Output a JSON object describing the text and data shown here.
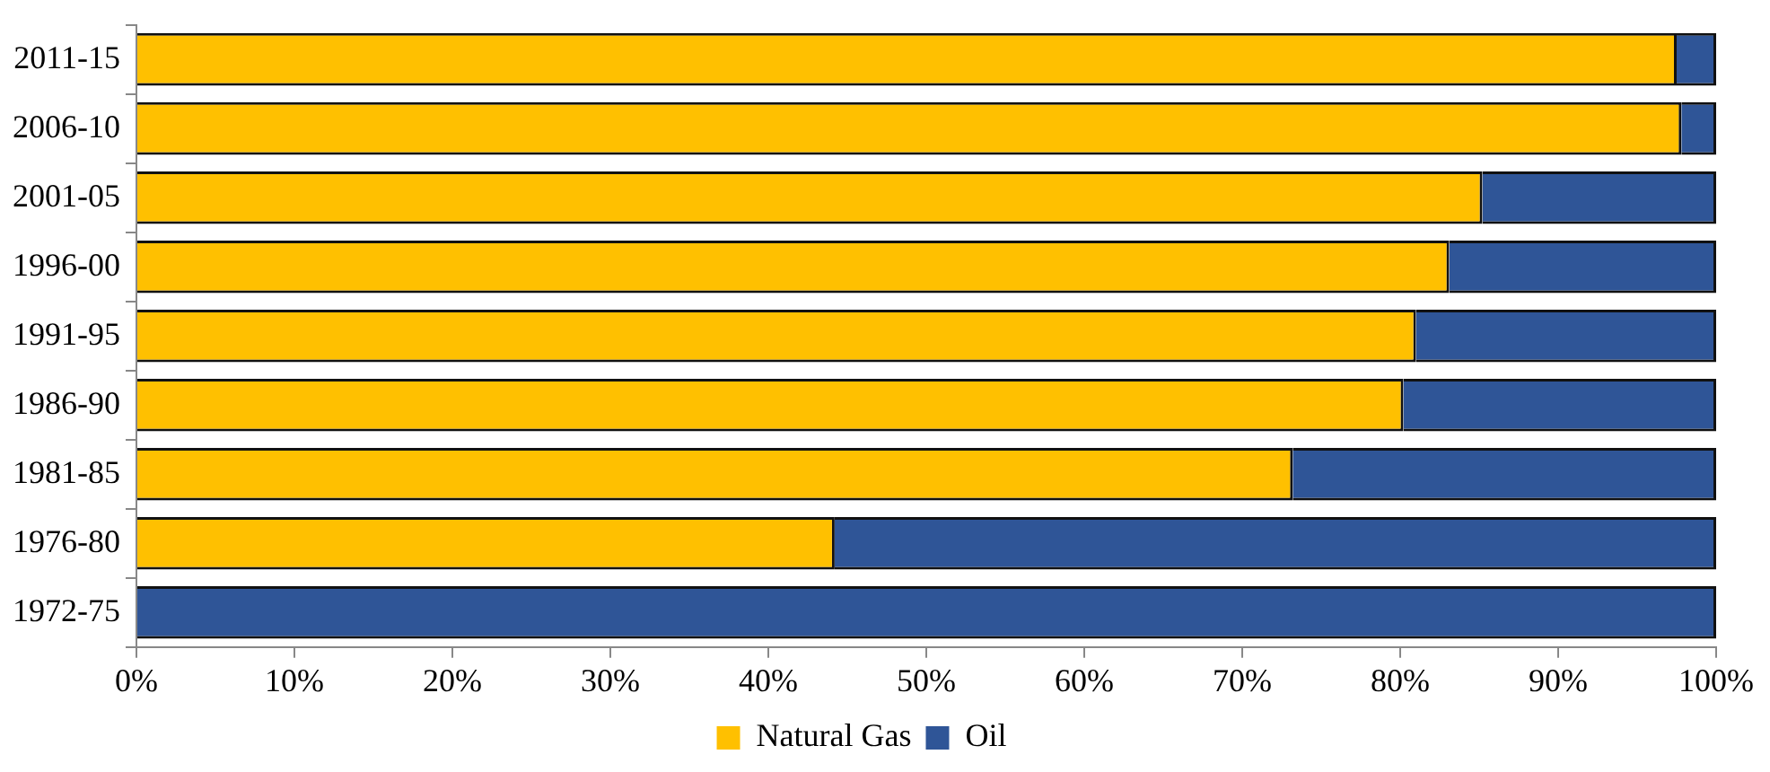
{
  "chart_data": {
    "type": "bar",
    "orientation": "horizontal",
    "stacked": true,
    "categories": [
      "2011-15",
      "2006-10",
      "2001-05",
      "1996-00",
      "1991-95",
      "1986-90",
      "1981-85",
      "1976-80",
      "1972-75"
    ],
    "series": [
      {
        "name": "Natural Gas",
        "color": "#ffc000",
        "values": [
          97.5,
          97.8,
          85.2,
          83.1,
          81.0,
          80.2,
          73.2,
          44.2,
          0
        ]
      },
      {
        "name": "Oil",
        "color": "#2f5597",
        "values": [
          2.5,
          2.2,
          14.8,
          16.9,
          19.0,
          19.8,
          26.8,
          55.8,
          100
        ]
      }
    ],
    "xlim": [
      0,
      100
    ],
    "xticks": [
      {
        "value": 0,
        "label": "0%"
      },
      {
        "value": 10,
        "label": "10%"
      },
      {
        "value": 20,
        "label": "20%"
      },
      {
        "value": 30,
        "label": "30%"
      },
      {
        "value": 40,
        "label": "40%"
      },
      {
        "value": 50,
        "label": "50%"
      },
      {
        "value": 60,
        "label": "60%"
      },
      {
        "value": 70,
        "label": "70%"
      },
      {
        "value": 80,
        "label": "80%"
      },
      {
        "value": 90,
        "label": "90%"
      },
      {
        "value": 100,
        "label": "100%"
      }
    ],
    "grid": false,
    "legend": "bottom"
  }
}
